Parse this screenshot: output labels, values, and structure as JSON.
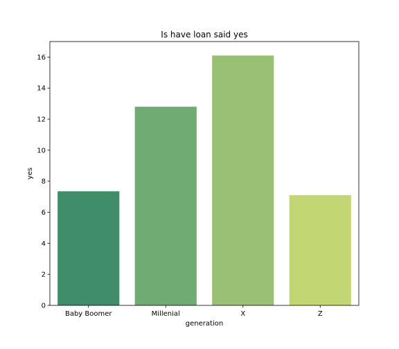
{
  "chart_data": {
    "type": "bar",
    "title": "Is have loan said yes",
    "xlabel": "generation",
    "ylabel": "yes",
    "categories": [
      "Baby Boomer",
      "Millenial",
      "X",
      "Z"
    ],
    "values": [
      7.35,
      12.8,
      16.1,
      7.1
    ],
    "colors": [
      "#3f8d69",
      "#6fab73",
      "#9ac173",
      "#c3d674"
    ],
    "ylim": [
      0,
      17
    ],
    "yticks": [
      0,
      2,
      4,
      6,
      8,
      10,
      12,
      14,
      16
    ],
    "grid": false
  }
}
